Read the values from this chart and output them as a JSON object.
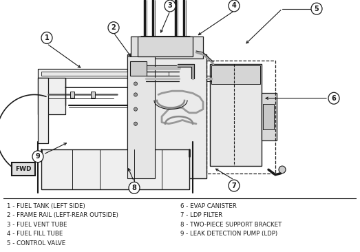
{
  "background_color": "#ffffff",
  "line_color": "#1a1a1a",
  "legend_left": [
    "1 - FUEL TANK (LEFT SIDE)",
    "2 - FRAME RAIL (LEFT-REAR OUTSIDE)",
    "3 - FUEL VENT TUBE",
    "4 - FUEL FILL TUBE",
    "5 - CONTROL VALVE"
  ],
  "legend_right": [
    "6 - EVAP CANISTER",
    "7 - LDP FILTER",
    "8 - TWO-PIECE SUPPORT BRACKET",
    "9 - LEAK DETECTION PUMP (LDP)"
  ],
  "fwd_label": "FWD",
  "legend_font_size": 6.2,
  "callout_font_size": 7.0,
  "fig_width": 5.23,
  "fig_height": 3.66
}
